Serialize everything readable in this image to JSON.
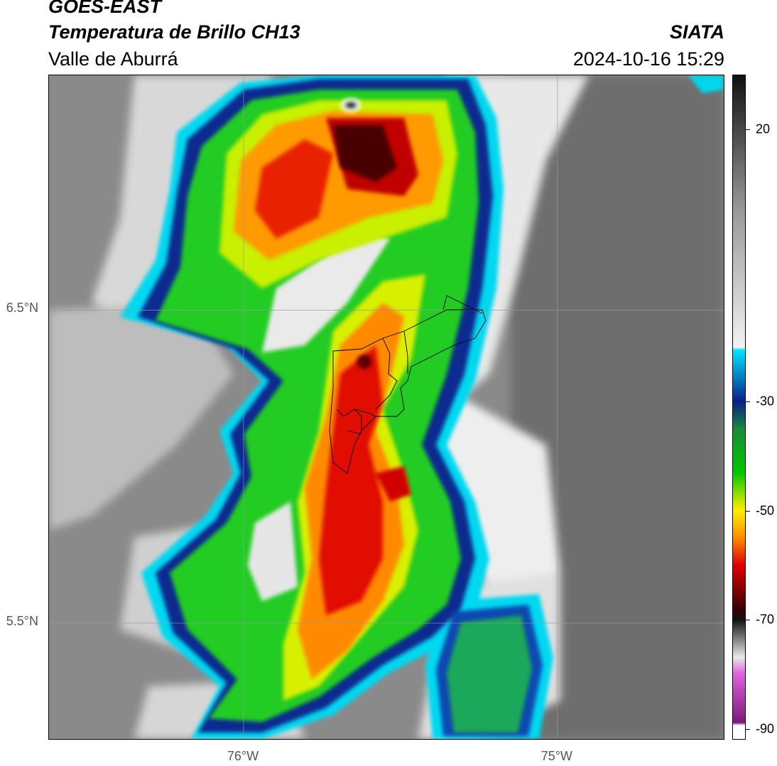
{
  "header": {
    "satellite": "GOES-EAST",
    "product": "Temperatura de Brillo CH13",
    "region": "Valle de Aburrá",
    "organization": "SIATA",
    "timestamp": "2024-10-16 15:29"
  },
  "map": {
    "lat_ticks": [
      {
        "label": "6.5°N",
        "value": 6.5
      },
      {
        "label": "5.5°N",
        "value": 5.5
      }
    ],
    "lon_ticks": [
      {
        "label": "76°W",
        "value": -76.0
      },
      {
        "label": "75°W",
        "value": -75.0
      }
    ],
    "extent": {
      "lon_min": -76.62,
      "lon_max": -74.47,
      "lat_min": 5.13,
      "lat_max": 7.25
    }
  },
  "colorbar": {
    "ticks": [
      {
        "label": "20",
        "value": 20
      },
      {
        "label": "-30",
        "value": -30
      },
      {
        "label": "-50",
        "value": -50
      },
      {
        "label": "-70",
        "value": -70
      },
      {
        "label": "-90",
        "value": -90
      }
    ],
    "range": [
      -92,
      30
    ],
    "colors": {
      "warm_gray_top": "#111111",
      "white_mid": "#f2f2f2",
      "cyan": "#00e5ff",
      "dark_blue": "#0a1f8a",
      "green": "#00c800",
      "yellow": "#ffee00",
      "orange": "#ff8c00",
      "red": "#e00000",
      "dark_red": "#3a0000",
      "magenta": "#e060e0",
      "purple": "#7a1a7a"
    }
  }
}
